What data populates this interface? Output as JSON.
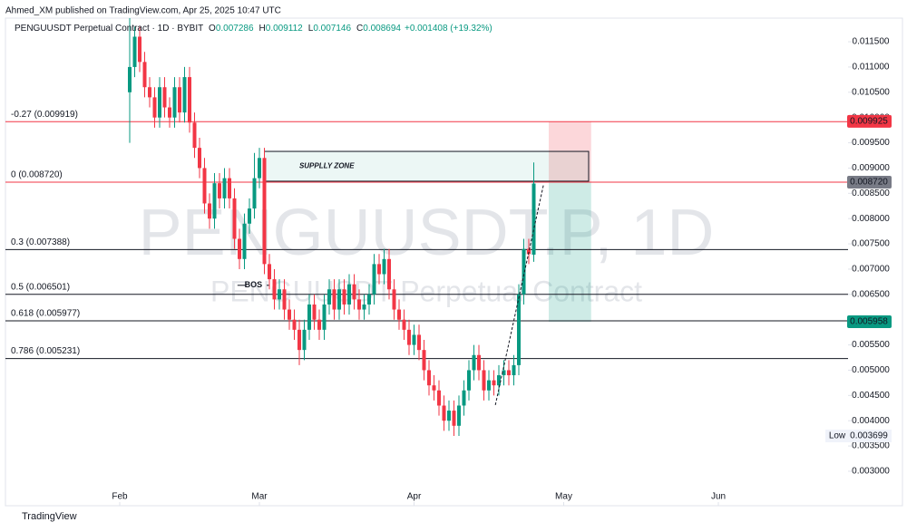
{
  "header": {
    "publisher": "Ahmed_XM published on TradingView.com, Apr 25, 2025 10:47 UTC",
    "symbol": "PENGUUSDT Perpetual Contract · 1D · BYBIT",
    "ohlc_keys": [
      "O",
      "H",
      "L",
      "C"
    ],
    "ohlc_values": [
      "0.007286",
      "0.009112",
      "0.007146",
      "0.008694"
    ],
    "change": "+0.001408 (+19.32%)"
  },
  "watermark": {
    "title": "PENGUUSDT.P, 1D",
    "subtitle": "PENGUUSDT Perpetual Contract"
  },
  "footer": "TradingView",
  "chart_data": {
    "type": "candlestick",
    "up_color": "#089981",
    "down_color": "#f23645",
    "x": [
      34,
      35,
      36,
      37,
      38,
      39,
      40,
      41,
      42,
      43,
      44,
      45,
      46,
      47,
      48,
      49,
      50,
      51,
      52,
      53,
      54,
      55,
      56,
      57,
      58,
      59,
      60,
      61,
      62,
      63,
      64,
      65,
      66,
      67,
      68,
      69,
      70,
      71,
      72,
      73,
      74,
      75,
      76,
      77,
      78,
      79,
      80,
      81,
      82,
      83,
      84,
      85,
      86,
      87,
      88,
      89,
      90,
      91,
      92,
      93,
      94,
      95,
      96,
      97,
      98,
      99,
      100,
      101,
      102,
      103,
      104,
      105,
      106,
      107,
      108,
      109,
      110,
      111,
      112,
      113,
      114,
      115
    ],
    "open": [
      0.0105,
      0.011,
      0.0116,
      0.0111,
      0.0106,
      0.0104,
      0.01,
      0.0106,
      0.0102,
      0.01,
      0.0106,
      0.0101,
      0.0108,
      0.0099,
      0.0094,
      0.009,
      0.0083,
      0.008,
      0.0087,
      0.0084,
      0.0088,
      0.0084,
      0.0076,
      0.0072,
      0.0079,
      0.0082,
      0.0088,
      0.0092,
      0.0071,
      0.0068,
      0.0064,
      0.0066,
      0.0062,
      0.006,
      0.0058,
      0.0054,
      0.0058,
      0.0063,
      0.006,
      0.0058,
      0.0063,
      0.0066,
      0.0062,
      0.0066,
      0.0063,
      0.0067,
      0.0064,
      0.0062,
      0.0063,
      0.0065,
      0.0071,
      0.0069,
      0.0072,
      0.0066,
      0.0062,
      0.006,
      0.0058,
      0.0055,
      0.0057,
      0.0054,
      0.005,
      0.0047,
      0.0046,
      0.0043,
      0.004,
      0.0042,
      0.0039,
      0.0043,
      0.0046,
      0.005,
      0.0053,
      0.005,
      0.0046,
      0.0048,
      0.0047,
      0.0049,
      0.005,
      0.0049,
      0.0051,
      0.0065,
      0.0074,
      0.007286
    ],
    "high": [
      0.012,
      0.0118,
      0.0118,
      0.0113,
      0.0108,
      0.0106,
      0.0108,
      0.0108,
      0.0104,
      0.0108,
      0.0108,
      0.011,
      0.011,
      0.0101,
      0.0096,
      0.0092,
      0.0085,
      0.0089,
      0.0089,
      0.009,
      0.009,
      0.0086,
      0.0078,
      0.0081,
      0.0084,
      0.0093,
      0.0094,
      0.0094,
      0.0073,
      0.007,
      0.0068,
      0.0068,
      0.0064,
      0.0062,
      0.006,
      0.006,
      0.0065,
      0.0065,
      0.0062,
      0.0065,
      0.0068,
      0.0068,
      0.0068,
      0.0068,
      0.0069,
      0.0069,
      0.0066,
      0.0065,
      0.0067,
      0.0073,
      0.0073,
      0.0074,
      0.0074,
      0.0068,
      0.0064,
      0.0062,
      0.006,
      0.0059,
      0.0059,
      0.0056,
      0.0052,
      0.0049,
      0.0048,
      0.0045,
      0.0044,
      0.0044,
      0.0045,
      0.0048,
      0.0052,
      0.0055,
      0.0055,
      0.0052,
      0.005,
      0.005,
      0.0051,
      0.0052,
      0.0052,
      0.0053,
      0.0067,
      0.0076,
      0.0076,
      0.009112
    ],
    "low": [
      0.0095,
      0.0108,
      0.0109,
      0.0104,
      0.0102,
      0.0098,
      0.0098,
      0.01,
      0.0098,
      0.0098,
      0.0099,
      0.0099,
      0.0097,
      0.0092,
      0.0088,
      0.0081,
      0.0078,
      0.0078,
      0.0082,
      0.0082,
      0.0082,
      0.0074,
      0.007,
      0.007,
      0.0077,
      0.008,
      0.0086,
      0.0069,
      0.0066,
      0.0062,
      0.0062,
      0.006,
      0.0058,
      0.0056,
      0.0051,
      0.0052,
      0.0056,
      0.0058,
      0.0056,
      0.0056,
      0.0061,
      0.006,
      0.006,
      0.0061,
      0.0061,
      0.0062,
      0.006,
      0.006,
      0.0061,
      0.0063,
      0.0067,
      0.0067,
      0.0064,
      0.006,
      0.0058,
      0.0056,
      0.0053,
      0.0053,
      0.0052,
      0.0048,
      0.0045,
      0.0044,
      0.0041,
      0.0038,
      0.0038,
      0.0037,
      0.0037,
      0.0041,
      0.0044,
      0.0048,
      0.0048,
      0.0044,
      0.0044,
      0.0045,
      0.0045,
      0.0047,
      0.0047,
      0.0047,
      0.0049,
      0.0063,
      0.0071,
      0.007146
    ],
    "close": [
      0.011,
      0.0116,
      0.0111,
      0.0106,
      0.0104,
      0.01,
      0.0106,
      0.0102,
      0.01,
      0.0106,
      0.0101,
      0.0108,
      0.0099,
      0.0094,
      0.009,
      0.0083,
      0.008,
      0.0087,
      0.0084,
      0.0088,
      0.0084,
      0.0076,
      0.0072,
      0.0079,
      0.0082,
      0.0088,
      0.0092,
      0.0071,
      0.0068,
      0.0064,
      0.0066,
      0.0062,
      0.006,
      0.0058,
      0.0054,
      0.0058,
      0.0063,
      0.006,
      0.0058,
      0.0063,
      0.0066,
      0.0062,
      0.0066,
      0.0063,
      0.0067,
      0.0064,
      0.0062,
      0.0063,
      0.0065,
      0.0071,
      0.0069,
      0.0072,
      0.0066,
      0.0062,
      0.006,
      0.0058,
      0.0055,
      0.0057,
      0.0054,
      0.005,
      0.0047,
      0.0046,
      0.0043,
      0.004,
      0.0042,
      0.0039,
      0.0043,
      0.0046,
      0.005,
      0.0053,
      0.005,
      0.0046,
      0.0048,
      0.0047,
      0.0049,
      0.005,
      0.0049,
      0.0051,
      0.0065,
      0.0074,
      0.0073,
      0.008694
    ],
    "xlim": [
      8,
      178
    ],
    "xticks": [
      {
        "value": 32,
        "label": "Feb"
      },
      {
        "value": 60,
        "label": "Mar"
      },
      {
        "value": 91,
        "label": "Apr"
      },
      {
        "value": 121,
        "label": "May"
      },
      {
        "value": 152,
        "label": "Jun"
      }
    ],
    "ylim": [
      0.002318,
      0.012326
    ],
    "yticks": [
      {
        "value": 0.003,
        "label": "0.003000"
      },
      {
        "value": 0.0035,
        "label": "0.003500"
      },
      {
        "value": 0.004,
        "label": "0.004000"
      },
      {
        "value": 0.0045,
        "label": "0.004500"
      },
      {
        "value": 0.005,
        "label": "0.005000"
      },
      {
        "value": 0.0055,
        "label": "0.005500"
      },
      {
        "value": 0.006,
        "label": "0.006000"
      },
      {
        "value": 0.0065,
        "label": "0.006500"
      },
      {
        "value": 0.007,
        "label": "0.007000"
      },
      {
        "value": 0.0075,
        "label": "0.007500"
      },
      {
        "value": 0.008,
        "label": "0.008000"
      },
      {
        "value": 0.0085,
        "label": "0.008500"
      },
      {
        "value": 0.009,
        "label": "0.009000"
      },
      {
        "value": 0.0095,
        "label": "0.009500"
      },
      {
        "value": 0.01,
        "label": "0.010000"
      },
      {
        "value": 0.0105,
        "label": "0.010500"
      },
      {
        "value": 0.011,
        "label": "0.011000"
      },
      {
        "value": 0.0115,
        "label": "0.011500"
      }
    ],
    "levels": [
      {
        "label": "-0.27 (0.009919)",
        "value": 0.009919,
        "color": "#f23645"
      },
      {
        "label": "0 (0.008720)",
        "value": 0.00872,
        "color": "#f23645"
      },
      {
        "label": "0.3 (0.007388)",
        "value": 0.007388,
        "color": "#131722"
      },
      {
        "label": "0.5 (0.006501)",
        "value": 0.006501,
        "color": "#131722"
      },
      {
        "label": "0.618 (0.005977)",
        "value": 0.005977,
        "color": "#131722"
      },
      {
        "label": "0.786 (0.005231)",
        "value": 0.005231,
        "color": "#131722"
      }
    ],
    "price_labels": [
      {
        "value": 0.009925,
        "label": "0.009925",
        "color": "#f23645"
      },
      {
        "value": 0.00872,
        "label": "0.008720",
        "color": "#787b86"
      },
      {
        "value": 0.005958,
        "label": "0.005958",
        "color": "#089981"
      }
    ],
    "low_label": {
      "name": "Low",
      "value": 0.003699,
      "label": "0.003699"
    },
    "supply_zone": {
      "label": "SUPPLLY ZONE",
      "x": [
        61,
        126
      ],
      "y": [
        0.00874,
        0.00933
      ]
    },
    "position": {
      "x": [
        118,
        126.5
      ],
      "stop": 0.00992,
      "entry": 0.00872,
      "target": 0.005958
    },
    "bos": {
      "label": "BOS",
      "x": [
        55.6,
        62
      ],
      "value": 0.00668
    },
    "arrow": {
      "x": [
        107.3,
        117
      ],
      "y": [
        0.00431,
        0.00869
      ]
    }
  }
}
